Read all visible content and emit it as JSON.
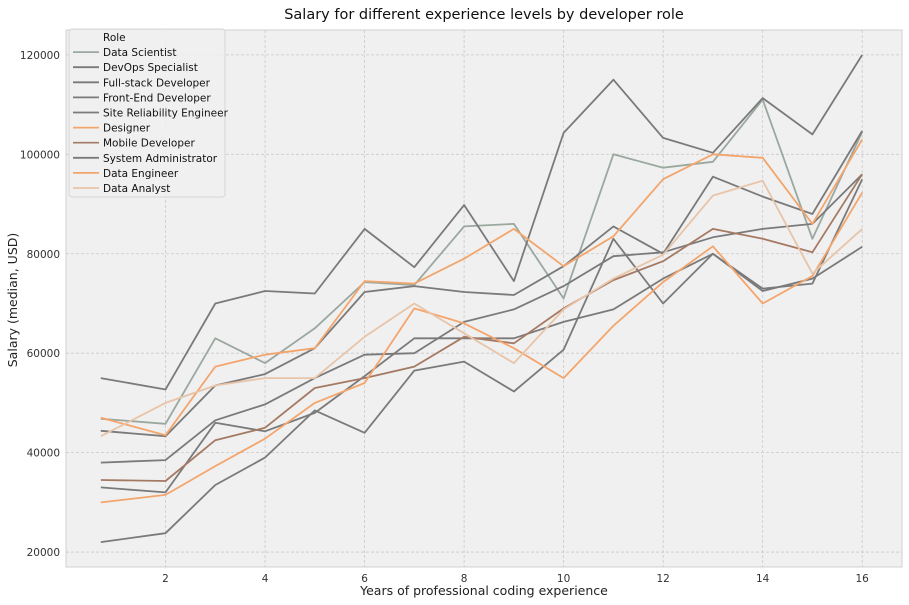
{
  "chart_data": {
    "type": "line",
    "title": "Salary for different experience levels by developer role",
    "xlabel": "Years of professional coding experience",
    "ylabel": "Salary (median, USD)",
    "xlim": [
      0,
      16.8
    ],
    "ylim": [
      17000,
      125000
    ],
    "xticks": [
      2,
      4,
      6,
      8,
      10,
      12,
      14,
      16
    ],
    "yticks": [
      20000,
      40000,
      60000,
      80000,
      100000,
      120000
    ],
    "grid": true,
    "legend_title": "Role",
    "legend_position": "top-left",
    "x": [
      0.7,
      2,
      3,
      4,
      5,
      6,
      7,
      8,
      9,
      10,
      11,
      12,
      13,
      14,
      15,
      16
    ],
    "series": [
      {
        "name": "Data Scientist",
        "color": "#9aa89f",
        "width": 1.8,
        "values": [
          46800,
          45800,
          63000,
          58000,
          65000,
          74300,
          73700,
          85500,
          86000,
          71000,
          100000,
          97300,
          98500,
          111000,
          83000,
          104500
        ]
      },
      {
        "name": "DevOps Specialist",
        "color": "#7a7a7a",
        "width": 1.8,
        "values": [
          44400,
          43300,
          53500,
          55800,
          61000,
          72300,
          73500,
          72300,
          71700,
          77500,
          85500,
          80000,
          95500,
          91500,
          88000,
          104700
        ]
      },
      {
        "name": "Full-stack Developer",
        "color": "#7a7a7a",
        "width": 1.8,
        "values": [
          38000,
          38500,
          46500,
          49700,
          55000,
          59700,
          60000,
          66300,
          68800,
          73500,
          79500,
          80300,
          83300,
          85000,
          86000,
          96000
        ]
      },
      {
        "name": "Front-End Developer",
        "color": "#7a7a7a",
        "width": 1.8,
        "values": [
          33000,
          32000,
          46000,
          44300,
          48000,
          55400,
          63000,
          63000,
          63000,
          66300,
          68800,
          75000,
          80000,
          72500,
          75000,
          81400
        ]
      },
      {
        "name": "Site Reliability Engineer",
        "color": "#7a7a7a",
        "width": 1.8,
        "values": [
          55000,
          52700,
          70000,
          72500,
          72000,
          85000,
          77300,
          89800,
          74500,
          104300,
          115000,
          103300,
          100300,
          111300,
          104000,
          120000
        ]
      },
      {
        "name": "Designer",
        "color": "#f3a56c",
        "width": 1.8,
        "values": [
          47000,
          43500,
          57300,
          59700,
          61000,
          74500,
          74000,
          79000,
          85000,
          77500,
          83500,
          95000,
          100000,
          99300,
          86000,
          103000
        ]
      },
      {
        "name": "Mobile Developer",
        "color": "#a57a64",
        "width": 1.6,
        "values": [
          34500,
          34300,
          42500,
          45000,
          53000,
          55000,
          57300,
          63300,
          62000,
          69000,
          74700,
          78500,
          85000,
          83000,
          80300,
          96000
        ]
      },
      {
        "name": "System Administrator",
        "color": "#7a7a7a",
        "width": 1.8,
        "values": [
          22000,
          23800,
          33500,
          39000,
          48500,
          44000,
          56500,
          58300,
          52300,
          60700,
          83000,
          70000,
          80000,
          73000,
          74000,
          95000
        ]
      },
      {
        "name": "Data Engineer",
        "color": "#f3a56c",
        "width": 1.8,
        "values": [
          30000,
          31500,
          37300,
          42800,
          50000,
          54000,
          69000,
          66000,
          61000,
          55000,
          65500,
          74300,
          81500,
          70000,
          75500,
          92300
        ]
      },
      {
        "name": "Data Analyst",
        "color": "#e8c4a8",
        "width": 1.8,
        "values": [
          43300,
          50000,
          53500,
          55000,
          55000,
          63300,
          70000,
          64000,
          58000,
          68800,
          75000,
          79800,
          91700,
          94700,
          76000,
          85000
        ]
      }
    ]
  }
}
